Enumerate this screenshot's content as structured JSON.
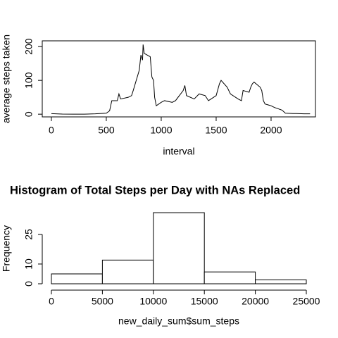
{
  "chart_data": [
    {
      "type": "line",
      "xlabel": "interval",
      "ylabel": "average steps taken",
      "x": [
        0,
        100,
        200,
        300,
        400,
        500,
        530,
        550,
        600,
        615,
        630,
        700,
        730,
        745,
        800,
        815,
        830,
        835,
        845,
        900,
        915,
        930,
        940,
        955,
        1000,
        1030,
        1100,
        1130,
        1200,
        1215,
        1230,
        1300,
        1345,
        1400,
        1430,
        1500,
        1530,
        1545,
        1600,
        1630,
        1700,
        1730,
        1745,
        1800,
        1815,
        1830,
        1845,
        1900,
        1915,
        1930,
        1945,
        2000,
        2030,
        2100,
        2130,
        2200,
        2230,
        2300,
        2355
      ],
      "series": [
        {
          "name": "average steps taken",
          "color": "#000000",
          "values": [
            1.7,
            0.3,
            0,
            0,
            1,
            3,
            10,
            40,
            40,
            60,
            45,
            50,
            55,
            70,
            130,
            175,
            160,
            206,
            180,
            170,
            110,
            100,
            50,
            25,
            35,
            40,
            35,
            40,
            70,
            85,
            55,
            45,
            60,
            55,
            40,
            55,
            90,
            100,
            80,
            60,
            45,
            40,
            70,
            65,
            80,
            90,
            95,
            80,
            70,
            40,
            30,
            25,
            20,
            12,
            3,
            2,
            2,
            1,
            1
          ]
        }
      ],
      "xlim": [
        -83,
        2404
      ],
      "xticks": [
        0,
        500,
        1000,
        1500,
        2000
      ],
      "ylim": [
        -8,
        217
      ],
      "yticks": [
        0,
        100,
        200
      ]
    },
    {
      "type": "histogram",
      "title": "Histogram of Total Steps per Day with NAs Replaced",
      "xlabel": "new_daily_sum$sum_steps",
      "ylabel": "Frequency",
      "bins": [
        0,
        5000,
        10000,
        15000,
        20000,
        25000
      ],
      "values": [
        5,
        12,
        36,
        6,
        2
      ],
      "color": "#ffffff",
      "xlim": [
        0,
        25000
      ],
      "xticks": [
        0,
        5000,
        10000,
        15000,
        20000,
        25000
      ],
      "ylim": [
        0,
        36
      ],
      "yticks": [
        0,
        10,
        25
      ]
    }
  ]
}
